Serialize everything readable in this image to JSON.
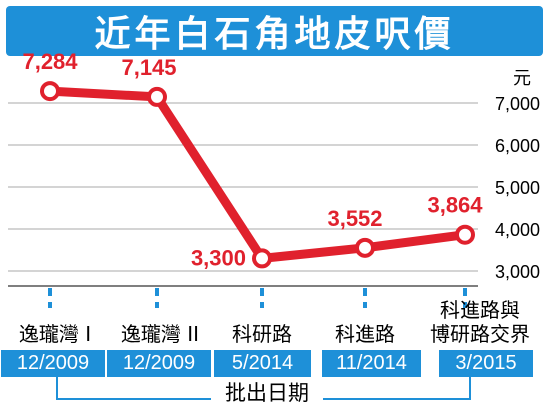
{
  "chart_data": {
    "type": "line",
    "title": "近年白石角地皮呎價",
    "ylabel": "元",
    "xlabel": "批出日期",
    "ylim": [
      2500,
      7400
    ],
    "yticks": [
      "3,000",
      "4,000",
      "5,000",
      "6,000",
      "7,000"
    ],
    "ytick_values": [
      3000,
      4000,
      5000,
      6000,
      7000
    ],
    "grid": true,
    "categories": [
      "逸瓏灣 I",
      "逸瓏灣 II",
      "科研路",
      "科進路",
      "科進路與博研路交界"
    ],
    "dates": [
      "12/2009",
      "12/2009",
      "5/2014",
      "11/2014",
      "3/2015"
    ],
    "values": [
      7284,
      7145,
      3300,
      3552,
      3864
    ],
    "value_labels": [
      "7,284",
      "7,145",
      "3,300",
      "3,552",
      "3,864"
    ],
    "colors": {
      "line": "#e0212d",
      "accent": "#1e90d8"
    }
  },
  "category_lines": [
    [
      "逸瓏灣 I"
    ],
    [
      "逸瓏灣 II"
    ],
    [
      "科研路"
    ],
    [
      "科進路"
    ],
    [
      "科進路與",
      "博研路交界"
    ]
  ]
}
